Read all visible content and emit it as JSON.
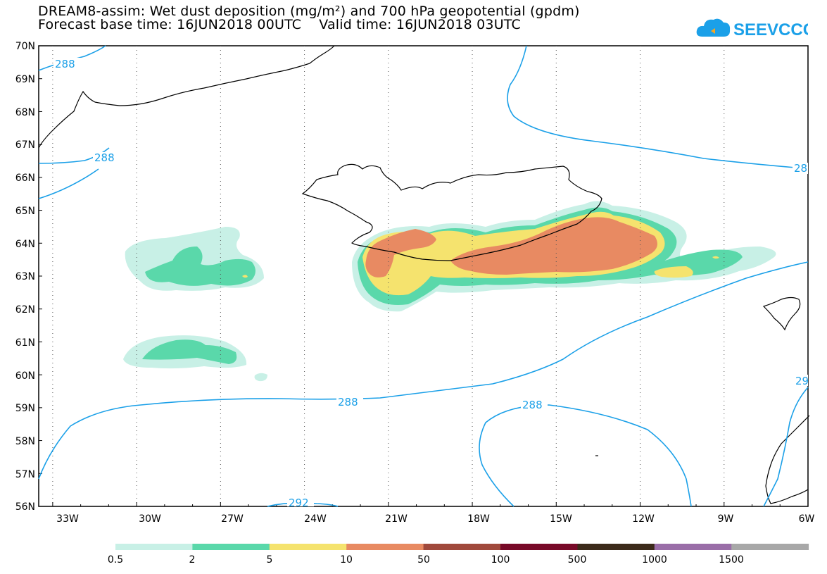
{
  "title": {
    "line1": "DREAM8-assim: Wet dust deposition (mg/m²) and 700 hPa geopotential (gpdm)",
    "line2": "Forecast base time: 16JUN2018 00UTC    Valid time: 16JUN2018 03UTC"
  },
  "logo": {
    "text": "SEEVCCC",
    "icon": "cloud-icon",
    "color": "#1ba0e8"
  },
  "map": {
    "lon_range": [
      -33.5,
      -6
    ],
    "lat_range": [
      56,
      70
    ],
    "lat_labels": [
      "70N",
      "69N",
      "68N",
      "67N",
      "66N",
      "65N",
      "64N",
      "63N",
      "62N",
      "61N",
      "60N",
      "59N",
      "58N",
      "57N",
      "56N"
    ],
    "lon_labels": [
      "33W",
      "30W",
      "27W",
      "24W",
      "21W",
      "18W",
      "15W",
      "12W",
      "9W",
      "6W"
    ],
    "contour_color": "#1ba0e8",
    "contour_labels": [
      "288",
      "288",
      "288",
      "288",
      "28",
      "29",
      "292"
    ]
  },
  "colorbar": {
    "labels": [
      "0.5",
      "2",
      "5",
      "10",
      "50",
      "100",
      "500",
      "1000",
      "1500"
    ],
    "colors": [
      "#c8f0e6",
      "#5ad8aa",
      "#f5e36e",
      "#e88a62",
      "#a0493c",
      "#780a28",
      "#3c2a1a",
      "#9a6ea8",
      "#a8a8a8"
    ]
  }
}
